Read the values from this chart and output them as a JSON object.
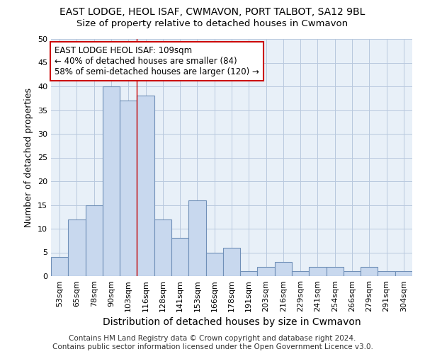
{
  "title": "EAST LODGE, HEOL ISAF, CWMAVON, PORT TALBOT, SA12 9BL",
  "subtitle": "Size of property relative to detached houses in Cwmavon",
  "xlabel": "Distribution of detached houses by size in Cwmavon",
  "ylabel": "Number of detached properties",
  "categories": [
    "53sqm",
    "65sqm",
    "78sqm",
    "90sqm",
    "103sqm",
    "116sqm",
    "128sqm",
    "141sqm",
    "153sqm",
    "166sqm",
    "178sqm",
    "191sqm",
    "203sqm",
    "216sqm",
    "229sqm",
    "241sqm",
    "254sqm",
    "266sqm",
    "279sqm",
    "291sqm",
    "304sqm"
  ],
  "values": [
    4,
    12,
    15,
    40,
    37,
    38,
    12,
    8,
    16,
    5,
    6,
    1,
    2,
    3,
    1,
    2,
    2,
    1,
    2,
    1,
    1
  ],
  "bar_color": "#c8d8ee",
  "bar_edge_color": "#7090b8",
  "grid_color": "#b8c8de",
  "bg_color": "#e8f0f8",
  "red_line_x": 4.5,
  "annotation_text": "EAST LODGE HEOL ISAF: 109sqm\n← 40% of detached houses are smaller (84)\n58% of semi-detached houses are larger (120) →",
  "annotation_box_color": "#ffffff",
  "annotation_box_edge": "#cc0000",
  "footer_line1": "Contains HM Land Registry data © Crown copyright and database right 2024.",
  "footer_line2": "Contains public sector information licensed under the Open Government Licence v3.0.",
  "ylim": [
    0,
    50
  ],
  "yticks": [
    0,
    5,
    10,
    15,
    20,
    25,
    30,
    35,
    40,
    45,
    50
  ],
  "title_fontsize": 10,
  "subtitle_fontsize": 9.5,
  "xlabel_fontsize": 10,
  "ylabel_fontsize": 9,
  "tick_fontsize": 8,
  "annotation_fontsize": 8.5,
  "footer_fontsize": 7.5
}
